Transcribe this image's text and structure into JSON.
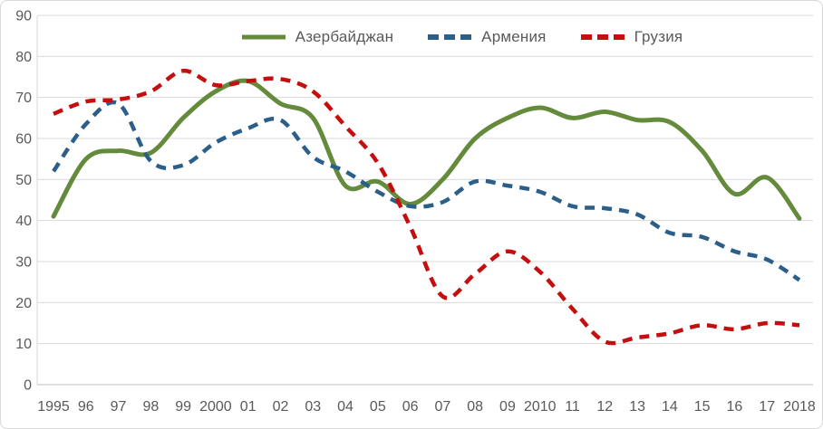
{
  "chart_data": {
    "type": "line",
    "x": [
      "1995",
      "96",
      "97",
      "98",
      "99",
      "2000",
      "01",
      "02",
      "03",
      "04",
      "05",
      "06",
      "07",
      "08",
      "09",
      "2010",
      "11",
      "12",
      "13",
      "14",
      "15",
      "16",
      "17",
      "2018"
    ],
    "series": [
      {
        "name": "Азербайджан",
        "color": "#648a3c",
        "style": "solid",
        "values": [
          41,
          55,
          57,
          56.5,
          65,
          71.5,
          74,
          68.5,
          65,
          48.5,
          49.5,
          44,
          50,
          60,
          65,
          67.5,
          65,
          66.5,
          64.5,
          64,
          57,
          46.5,
          50.5,
          40.5
        ]
      },
      {
        "name": "Армения",
        "color": "#2b5f8a",
        "style": "dashed",
        "values": [
          52,
          63.5,
          68.5,
          54.5,
          53.5,
          59,
          62.5,
          64.5,
          55.5,
          52,
          47,
          43.5,
          44.5,
          49.5,
          48.5,
          47,
          43.5,
          43,
          41.5,
          37,
          36,
          32.5,
          30.5,
          25.5
        ]
      },
      {
        "name": "Грузия",
        "color": "#c50e0e",
        "style": "dashed",
        "values": [
          66,
          69,
          69.5,
          71.5,
          76.5,
          73,
          74,
          74.5,
          71.5,
          63,
          54,
          38.5,
          21.5,
          27,
          32.5,
          27.5,
          18.5,
          10.5,
          11.5,
          12.5,
          14.5,
          13.5,
          15,
          14.5
        ]
      }
    ],
    "title": "",
    "xlabel": "",
    "ylabel": "",
    "ylim": [
      0,
      90
    ],
    "yticks": [
      0,
      10,
      20,
      30,
      40,
      50,
      60,
      70,
      80,
      90
    ],
    "grid": "horizontal",
    "legend_position": "top-center"
  },
  "style": {
    "grid_color": "#d9d9d9",
    "axis_line_color": "#bfbfbf",
    "tick_label_color": "#595959",
    "background": "#ffffff"
  }
}
